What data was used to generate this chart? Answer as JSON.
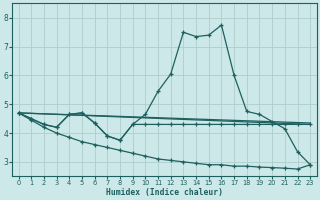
{
  "background_color": "#cce8e8",
  "grid_color": "#b8d8d8",
  "line_color": "#1e6060",
  "xlabel": "Humidex (Indice chaleur)",
  "xlim": [
    -0.5,
    23.5
  ],
  "ylim": [
    2.5,
    8.5
  ],
  "yticks": [
    3,
    4,
    5,
    6,
    7,
    8
  ],
  "xticks": [
    0,
    1,
    2,
    3,
    4,
    5,
    6,
    7,
    8,
    9,
    10,
    11,
    12,
    13,
    14,
    15,
    16,
    17,
    18,
    19,
    20,
    21,
    22,
    23
  ],
  "series1_x": [
    0,
    1,
    2,
    3,
    4,
    5,
    6,
    7,
    8,
    9,
    10,
    11,
    12,
    13,
    14,
    15,
    16,
    17,
    18,
    19,
    20,
    21,
    22,
    23
  ],
  "series1_y": [
    4.7,
    4.5,
    4.3,
    4.2,
    4.65,
    4.7,
    4.35,
    3.9,
    3.75,
    4.3,
    4.65,
    5.45,
    6.05,
    7.5,
    7.35,
    7.4,
    7.75,
    6.0,
    4.75,
    4.65,
    4.4,
    4.15,
    3.35,
    2.9
  ],
  "series2_x": [
    0,
    1,
    2,
    3,
    4,
    5,
    6,
    7,
    8,
    9,
    10,
    11,
    12,
    13,
    14,
    15,
    16,
    17,
    18,
    19,
    20,
    21,
    22,
    23
  ],
  "series2_y": [
    4.7,
    4.5,
    4.3,
    4.2,
    4.65,
    4.7,
    4.35,
    3.9,
    3.75,
    4.3,
    4.3,
    4.3,
    4.3,
    4.3,
    4.3,
    4.3,
    4.3,
    4.3,
    4.3,
    4.3,
    4.3,
    4.3,
    4.3,
    4.3
  ],
  "series3_x": [
    0,
    23
  ],
  "series3_y": [
    4.7,
    4.3
  ],
  "series4_x": [
    0,
    23
  ],
  "series4_y": [
    4.7,
    4.35
  ],
  "series5_x": [
    0,
    1,
    2,
    3,
    4,
    5,
    6,
    7,
    8,
    9,
    10,
    11,
    12,
    13,
    14,
    15,
    16,
    17,
    18,
    19,
    20,
    21,
    22,
    23
  ],
  "series5_y": [
    4.7,
    4.45,
    4.2,
    4.0,
    3.85,
    3.7,
    3.6,
    3.5,
    3.4,
    3.3,
    3.2,
    3.1,
    3.05,
    3.0,
    2.95,
    2.9,
    2.9,
    2.85,
    2.85,
    2.82,
    2.8,
    2.78,
    2.75,
    2.9
  ]
}
